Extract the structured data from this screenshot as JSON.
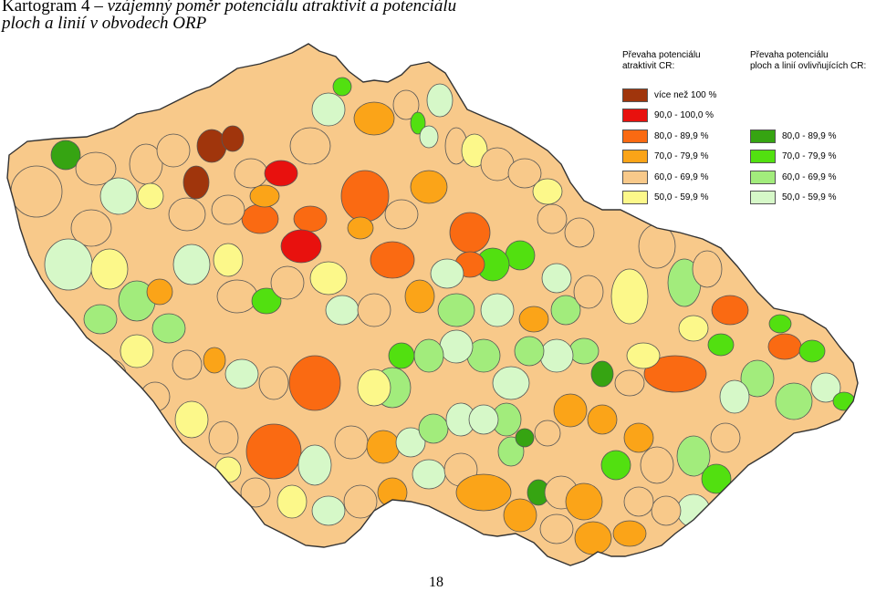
{
  "caption": {
    "head": "Kartogram 4",
    "dash": " – ",
    "line1_rest": "vzájemný poměr potenciálu atraktivit a potenciálu",
    "line2": "ploch a linií v obvodech ORP"
  },
  "colors": {
    "over100": "#a0350c",
    "p90_100": "#e8110e",
    "p80_89_orange": "#fa6a12",
    "p70_79_orange": "#fba418",
    "p60_69_orange": "#f8c98a",
    "p50_59_yellow": "#fcf88a",
    "p80_89_green": "#36a412",
    "p70_79_green": "#52e010",
    "p60_69_green": "#a2ec7c",
    "p50_59_green": "#d6f8c8",
    "border": "#555555"
  },
  "legend_left": {
    "title_line1": "Převaha potenciálu",
    "title_line2": "atraktivit CR:",
    "items": [
      {
        "label": "více než 100 %",
        "color": "#a0350c"
      },
      {
        "label": "90,0 - 100,0 %",
        "color": "#e8110e"
      },
      {
        "label": "80,0 - 89,9 %",
        "color": "#fa6a12"
      },
      {
        "label": "70,0 - 79,9 %",
        "color": "#fba418"
      },
      {
        "label": "60,0 - 69,9 %",
        "color": "#f8c98a"
      },
      {
        "label": "50,0 - 59,9 %",
        "color": "#fcf88a"
      }
    ]
  },
  "legend_right": {
    "title_line1": "Převaha potenciálu",
    "title_line2": "ploch a linií ovlivňujících CR:",
    "items": [
      {
        "label": "80,0 - 89,9 %",
        "color": "#36a412"
      },
      {
        "label": "70,0 - 79,9 %",
        "color": "#52e010"
      },
      {
        "label": "60,0 - 69,9 %",
        "color": "#a2ec7c"
      },
      {
        "label": "50,0 - 59,9 %",
        "color": "#d6f8c8"
      }
    ]
  },
  "page_number": "18"
}
